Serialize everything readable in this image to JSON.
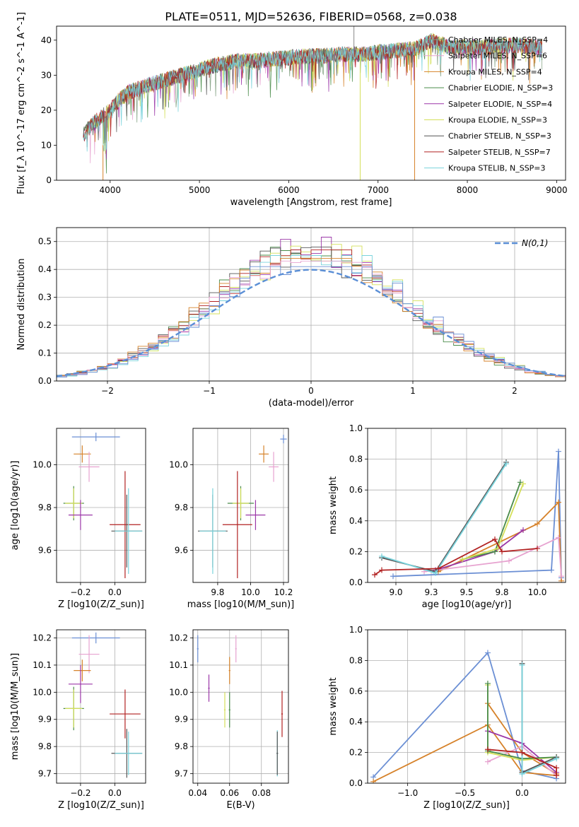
{
  "figure_title": "PLATE=0511, MJD=52636, FIBERID=0568, z=0.038",
  "chart_data": [
    {
      "id": "spectrum",
      "type": "line",
      "xlabel": "wavelength [Angstrom, rest frame]",
      "ylabel": "Flux [f_λ 10^-17 erg cm^-2 s^-1 A^-1]",
      "xlim": [
        3400,
        9100
      ],
      "ylim": [
        0,
        44
      ],
      "xticks": [
        4000,
        5000,
        6000,
        7000,
        8000,
        9000
      ],
      "yticks": [
        0,
        10,
        20,
        30,
        40
      ],
      "grid": false,
      "legend_position": "right",
      "envelope": {
        "x": [
          3700,
          3800,
          3900,
          4000,
          4100,
          4200,
          4400,
          4600,
          4800,
          5000,
          5200,
          5400,
          5600,
          5800,
          6000,
          6200,
          6400,
          6600,
          6800,
          7000,
          7200,
          7400,
          7600,
          7800,
          8000,
          8200,
          8400,
          8600,
          8800
        ],
        "y": [
          13,
          16,
          18,
          20,
          23,
          25,
          27,
          28.5,
          30,
          31.5,
          33,
          34,
          34,
          34.5,
          35,
          35.5,
          35.5,
          36,
          36,
          36.5,
          37,
          37.5,
          40,
          38,
          38,
          38,
          38.5,
          38.5,
          38
        ]
      },
      "series": [
        {
          "name": "Chabrier MILES, N_SSP=4",
          "color": "#7f9f7f"
        },
        {
          "name": "Salpeter MILES, N_SSP=6",
          "color": "#e7a3d0"
        },
        {
          "name": "Kroupa MILES, N_SSP=4",
          "color": "#d6822a"
        },
        {
          "name": "Chabrier ELODIE, N_SSP=3",
          "color": "#4a8c4a"
        },
        {
          "name": "Salpeter ELODIE, N_SSP=4",
          "color": "#9b37a8"
        },
        {
          "name": "Kroupa ELODIE, N_SSP=3",
          "color": "#d4e05a"
        },
        {
          "name": "Chabrier STELIB, N_SSP=3",
          "color": "#555555"
        },
        {
          "name": "Salpeter STELIB, N_SSP=7",
          "color": "#b22222"
        },
        {
          "name": "Kroupa STELIB, N_SSP=3",
          "color": "#79d3dc"
        }
      ]
    },
    {
      "id": "residuals",
      "type": "histogram",
      "xlabel": "(data-model)/error",
      "ylabel": "Normed distribution",
      "xlim": [
        -2.5,
        2.5
      ],
      "ylim": [
        0,
        0.55
      ],
      "xticks": [
        -2,
        -1,
        0,
        1,
        2
      ],
      "yticks": [
        0,
        0.1,
        0.2,
        0.3,
        0.4,
        0.5
      ],
      "grid": true,
      "legend": "N(0,1)",
      "legend_position": "top-right",
      "bin_width": 0.1,
      "peak_values": [
        0.5,
        0.52,
        0.49,
        0.48,
        0.47,
        0.45,
        0.44,
        0.43,
        0.41
      ],
      "series_colors": [
        "#4a8c4a",
        "#9b37a8",
        "#d4e05a",
        "#555555",
        "#b22222",
        "#79d3dc",
        "#d6822a",
        "#e7a3d0",
        "#6b8fd4"
      ]
    },
    {
      "id": "age_vs_Z",
      "type": "scatter",
      "xlabel": "Z [log10(Z/Z_sun)]",
      "ylabel": "age [log10(age/yr)]",
      "xlim": [
        -0.34,
        0.18
      ],
      "ylim": [
        9.45,
        10.17
      ],
      "xticks": [
        -0.2,
        0.0
      ],
      "yticks": [
        9.6,
        9.8,
        10.0
      ],
      "grid": true,
      "points": [
        {
          "x": -0.11,
          "y": 10.13,
          "xerr": 0.14,
          "yerr": 0.02,
          "color": "#6b8fd4"
        },
        {
          "x": -0.19,
          "y": 10.05,
          "xerr": 0.05,
          "yerr": 0.04,
          "color": "#d6822a"
        },
        {
          "x": -0.15,
          "y": 9.99,
          "xerr": 0.06,
          "yerr": 0.07,
          "color": "#e7a3d0"
        },
        {
          "x": -0.24,
          "y": 9.82,
          "xerr": 0.06,
          "yerr": 0.08,
          "color": "#4a8c4a"
        },
        {
          "x": -0.24,
          "y": 9.82,
          "xerr": 0.05,
          "yerr": 0.07,
          "color": "#d4e05a"
        },
        {
          "x": -0.2,
          "y": 9.765,
          "xerr": 0.07,
          "yerr": 0.07,
          "color": "#9b37a8"
        },
        {
          "x": 0.06,
          "y": 9.72,
          "xerr": 0.09,
          "yerr": 0.25,
          "color": "#b22222"
        },
        {
          "x": 0.07,
          "y": 9.69,
          "xerr": 0.09,
          "yerr": 0.17,
          "color": "#555555"
        },
        {
          "x": 0.08,
          "y": 9.69,
          "xerr": 0.08,
          "yerr": 0.2,
          "color": "#79d3dc"
        }
      ]
    },
    {
      "id": "age_vs_mass",
      "type": "scatter",
      "xlabel": "mass [log10(M/M_sun)]",
      "ylabel": "",
      "xlim": [
        9.65,
        10.23
      ],
      "ylim": [
        9.45,
        10.17
      ],
      "xticks": [
        9.8,
        10.0,
        10.2
      ],
      "yticks": [
        9.6,
        9.8,
        10.0
      ],
      "grid": true,
      "points": [
        {
          "x": 10.2,
          "y": 10.12,
          "xerr": 0.02,
          "yerr": 0.02,
          "color": "#6b8fd4"
        },
        {
          "x": 10.08,
          "y": 10.05,
          "xerr": 0.03,
          "yerr": 0.04,
          "color": "#d6822a"
        },
        {
          "x": 10.14,
          "y": 9.99,
          "xerr": 0.03,
          "yerr": 0.07,
          "color": "#e7a3d0"
        },
        {
          "x": 9.94,
          "y": 9.82,
          "xerr": 0.08,
          "yerr": 0.08,
          "color": "#4a8c4a"
        },
        {
          "x": 9.94,
          "y": 9.82,
          "xerr": 0.05,
          "yerr": 0.07,
          "color": "#d4e05a"
        },
        {
          "x": 10.03,
          "y": 9.765,
          "xerr": 0.06,
          "yerr": 0.07,
          "color": "#9b37a8"
        },
        {
          "x": 9.92,
          "y": 9.72,
          "xerr": 0.09,
          "yerr": 0.25,
          "color": "#b22222"
        },
        {
          "x": 9.77,
          "y": 9.69,
          "xerr": 0.09,
          "yerr": 0.17,
          "color": "#555555"
        },
        {
          "x": 9.77,
          "y": 9.69,
          "xerr": 0.08,
          "yerr": 0.2,
          "color": "#79d3dc"
        }
      ]
    },
    {
      "id": "weight_vs_age",
      "type": "line",
      "xlabel": "age [log10(age/yr)]",
      "ylabel": "mass weight",
      "xlim": [
        8.8,
        10.2
      ],
      "ylim": [
        0,
        1.0
      ],
      "xticks": [
        9.0,
        9.25,
        9.5,
        9.75,
        10.0
      ],
      "yticks": [
        0,
        0.2,
        0.4,
        0.6,
        0.8,
        1.0
      ],
      "grid": true,
      "series": [
        {
          "color": "#6b8fd4",
          "x": [
            8.98,
            10.1,
            10.15,
            10.17
          ],
          "y": [
            0.04,
            0.08,
            0.85,
            0.03
          ]
        },
        {
          "color": "#d6822a",
          "x": [
            9.3,
            10.0,
            10.15,
            10.17
          ],
          "y": [
            0.07,
            0.38,
            0.52,
            0.01
          ]
        },
        {
          "color": "#e7a3d0",
          "x": [
            9.2,
            9.8,
            10.15,
            10.17
          ],
          "y": [
            0.07,
            0.14,
            0.29,
            0.04
          ]
        },
        {
          "color": "#9b37a8",
          "x": [
            9.28,
            9.7,
            9.9
          ],
          "y": [
            0.08,
            0.2,
            0.34
          ]
        },
        {
          "color": "#4a8c4a",
          "x": [
            9.47,
            9.7,
            9.88
          ],
          "y": [
            0.15,
            0.2,
            0.65
          ]
        },
        {
          "color": "#d4e05a",
          "x": [
            9.47,
            9.72,
            9.9
          ],
          "y": [
            0.15,
            0.22,
            0.64
          ]
        },
        {
          "color": "#555555",
          "x": [
            8.9,
            9.28,
            9.78
          ],
          "y": [
            0.16,
            0.07,
            0.78
          ]
        },
        {
          "color": "#79d3dc",
          "x": [
            8.9,
            9.28,
            9.78
          ],
          "y": [
            0.17,
            0.06,
            0.77
          ]
        },
        {
          "color": "#b22222",
          "x": [
            8.85,
            8.9,
            9.3,
            9.7,
            9.75,
            10.0
          ],
          "y": [
            0.05,
            0.08,
            0.09,
            0.28,
            0.2,
            0.22
          ]
        }
      ]
    },
    {
      "id": "mass_vs_Z",
      "type": "scatter",
      "xlabel": "Z [log10(Z/Z_sun)]",
      "ylabel": "mass [log10(M/M_sun)]",
      "xlim": [
        -0.34,
        0.18
      ],
      "ylim": [
        9.665,
        10.23
      ],
      "xticks": [
        -0.2,
        0.0
      ],
      "yticks": [
        9.7,
        9.8,
        9.9,
        10.0,
        10.1,
        10.2
      ],
      "grid": true,
      "points": [
        {
          "x": -0.11,
          "y": 10.2,
          "xerr": 0.14,
          "yerr": 0.02,
          "color": "#6b8fd4"
        },
        {
          "x": -0.15,
          "y": 10.14,
          "xerr": 0.06,
          "yerr": 0.07,
          "color": "#e7a3d0"
        },
        {
          "x": -0.19,
          "y": 10.08,
          "xerr": 0.05,
          "yerr": 0.04,
          "color": "#d6822a"
        },
        {
          "x": -0.2,
          "y": 10.03,
          "xerr": 0.07,
          "yerr": 0.07,
          "color": "#9b37a8"
        },
        {
          "x": -0.24,
          "y": 9.94,
          "xerr": 0.06,
          "yerr": 0.08,
          "color": "#4a8c4a"
        },
        {
          "x": -0.24,
          "y": 9.94,
          "xerr": 0.05,
          "yerr": 0.07,
          "color": "#d4e05a"
        },
        {
          "x": 0.06,
          "y": 9.92,
          "xerr": 0.09,
          "yerr": 0.09,
          "color": "#b22222"
        },
        {
          "x": 0.07,
          "y": 9.775,
          "xerr": 0.09,
          "yerr": 0.09,
          "color": "#555555"
        },
        {
          "x": 0.08,
          "y": 9.775,
          "xerr": 0.08,
          "yerr": 0.08,
          "color": "#79d3dc"
        }
      ]
    },
    {
      "id": "mass_vs_ebv",
      "type": "scatter",
      "xlabel": "E(B-V)",
      "ylabel": "",
      "xlim": [
        0.037,
        0.097
      ],
      "ylim": [
        9.665,
        10.23
      ],
      "xticks": [
        0.04,
        0.06,
        0.08
      ],
      "yticks": [
        9.7,
        9.8,
        9.9,
        10.0,
        10.1,
        10.2
      ],
      "grid": true,
      "points": [
        {
          "x": 0.04,
          "y": 10.16,
          "xerr": 0.0005,
          "yerr": 0.05,
          "color": "#6b8fd4"
        },
        {
          "x": 0.064,
          "y": 10.16,
          "xerr": 0.0005,
          "yerr": 0.05,
          "color": "#e7a3d0"
        },
        {
          "x": 0.06,
          "y": 10.08,
          "xerr": 0.0005,
          "yerr": 0.05,
          "color": "#d6822a"
        },
        {
          "x": 0.047,
          "y": 10.015,
          "xerr": 0.0005,
          "yerr": 0.05,
          "color": "#9b37a8"
        },
        {
          "x": 0.057,
          "y": 9.935,
          "xerr": 0.0005,
          "yerr": 0.065,
          "color": "#d4e05a"
        },
        {
          "x": 0.06,
          "y": 9.935,
          "xerr": 0.0005,
          "yerr": 0.065,
          "color": "#4a8c4a"
        },
        {
          "x": 0.093,
          "y": 9.92,
          "xerr": 0.0005,
          "yerr": 0.085,
          "color": "#b22222"
        },
        {
          "x": 0.09,
          "y": 9.775,
          "xerr": 0.0005,
          "yerr": 0.085,
          "color": "#79d3dc"
        },
        {
          "x": 0.09,
          "y": 9.775,
          "xerr": 0.0005,
          "yerr": 0.08,
          "color": "#555555"
        }
      ]
    },
    {
      "id": "weight_vs_Z",
      "type": "line",
      "xlabel": "Z [log10(Z/Z_sun)]",
      "ylabel": "mass weight",
      "xlim": [
        -1.35,
        0.38
      ],
      "ylim": [
        0,
        1.0
      ],
      "xticks": [
        -1.0,
        -0.5,
        0.0
      ],
      "yticks": [
        0,
        0.2,
        0.4,
        0.6,
        0.8,
        1.0
      ],
      "grid": true,
      "series": [
        {
          "color": "#6b8fd4",
          "x": [
            -1.3,
            -0.3,
            0.0,
            0.3
          ],
          "y": [
            0.04,
            0.85,
            0.08,
            0.03
          ]
        },
        {
          "color": "#d6822a",
          "x": [
            -1.3,
            -0.3,
            0.0,
            0.3
          ],
          "y": [
            0.01,
            0.38,
            0.07,
            0.05
          ]
        },
        {
          "color": "#d6822a",
          "x": [
            -0.3,
            0.0,
            0.3
          ],
          "y": [
            0.52,
            0.2,
            0.06
          ]
        },
        {
          "color": "#e7a3d0",
          "x": [
            -0.3,
            0.0,
            0.3
          ],
          "y": [
            0.14,
            0.24,
            0.05
          ]
        },
        {
          "color": "#9b37a8",
          "x": [
            -0.3,
            0.0,
            0.3
          ],
          "y": [
            0.34,
            0.26,
            0.07
          ]
        },
        {
          "color": "#d4e05a",
          "x": [
            -0.3,
            -0.3,
            0.0,
            0.3
          ],
          "y": [
            0.64,
            0.2,
            0.15,
            0.17
          ]
        },
        {
          "color": "#4a8c4a",
          "x": [
            -0.3,
            -0.3,
            0.0,
            0.3
          ],
          "y": [
            0.65,
            0.21,
            0.16,
            0.17
          ]
        },
        {
          "color": "#555555",
          "x": [
            0.0,
            0.0,
            0.3
          ],
          "y": [
            0.78,
            0.07,
            0.17
          ]
        },
        {
          "color": "#79d3dc",
          "x": [
            0.0,
            0.0,
            0.3
          ],
          "y": [
            0.77,
            0.06,
            0.16
          ]
        },
        {
          "color": "#b22222",
          "x": [
            -0.3,
            0.0,
            0.3,
            0.3
          ],
          "y": [
            0.22,
            0.2,
            0.1,
            0.05
          ]
        }
      ]
    }
  ]
}
